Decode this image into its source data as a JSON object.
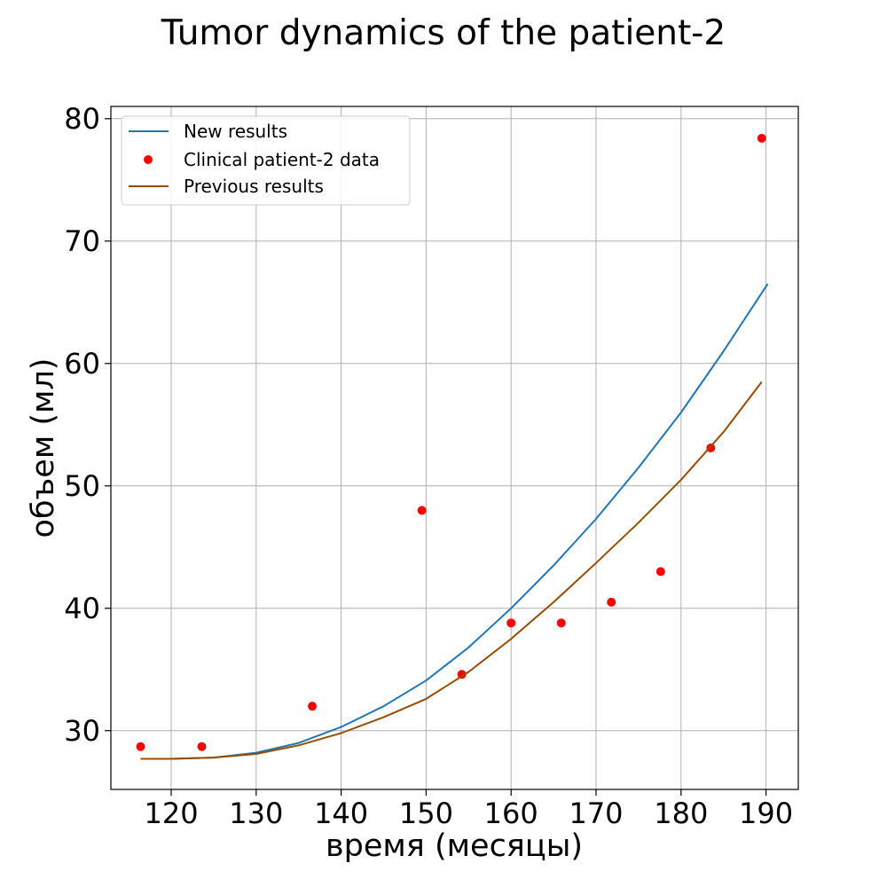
{
  "chart_data": {
    "type": "line",
    "title": "Tumor dynamics of the patient-2",
    "xlabel": "время (месяцы)",
    "ylabel": "объем (мл)",
    "xlim": [
      112.9,
      193.8
    ],
    "ylim": [
      25.2,
      81.0
    ],
    "xticks": [
      120,
      130,
      140,
      150,
      160,
      170,
      180,
      190
    ],
    "yticks": [
      30,
      40,
      50,
      60,
      70,
      80
    ],
    "grid": true,
    "legend_position": "top-left",
    "series": [
      {
        "name": "New results",
        "kind": "line",
        "color": "#1f77b4",
        "x": [
          116.4,
          120,
          125,
          130,
          135,
          140,
          145,
          150,
          155,
          160,
          165,
          170,
          175,
          180,
          185,
          190.2
        ],
        "y": [
          27.7,
          27.7,
          27.8,
          28.2,
          29.0,
          30.3,
          32.0,
          34.1,
          36.8,
          40.0,
          43.5,
          47.3,
          51.5,
          56.0,
          61.0,
          66.5
        ]
      },
      {
        "name": "Clinical patient-2 data",
        "kind": "scatter",
        "color": "#ff0000",
        "x": [
          116.4,
          123.6,
          136.6,
          149.5,
          154.2,
          160.0,
          165.9,
          171.8,
          177.6,
          183.5,
          189.5
        ],
        "y": [
          28.7,
          28.7,
          32.0,
          48.0,
          34.6,
          38.8,
          38.8,
          40.5,
          43.0,
          53.1,
          78.4
        ]
      },
      {
        "name": "Previous results",
        "kind": "line",
        "color": "#994c00",
        "x": [
          116.4,
          120,
          125,
          130,
          135,
          140,
          145,
          150,
          155,
          160,
          165,
          170,
          175,
          180,
          185,
          189.5
        ],
        "y": [
          27.7,
          27.7,
          27.8,
          28.1,
          28.8,
          29.8,
          31.1,
          32.6,
          34.8,
          37.5,
          40.5,
          43.7,
          47.0,
          50.5,
          54.4,
          58.5
        ]
      }
    ]
  }
}
